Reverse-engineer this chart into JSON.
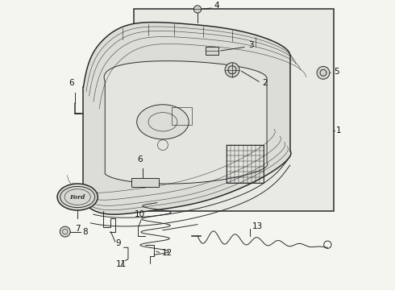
{
  "bg_color": "#f5f5f0",
  "line_color": "#2a2a2a",
  "grille_face_color": "#e8e8e3",
  "grille_side_color": "#d0d0ca",
  "grille_top_color": "#dcdcd7",
  "panel_bg_color": "#eeeeea"
}
